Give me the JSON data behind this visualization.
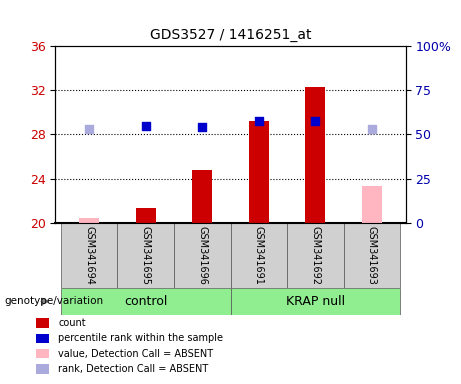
{
  "title": "GDS3527 / 1416251_at",
  "samples": [
    "GSM341694",
    "GSM341695",
    "GSM341696",
    "GSM341691",
    "GSM341692",
    "GSM341693"
  ],
  "groups": [
    "control",
    "control",
    "control",
    "KRAP null",
    "KRAP null",
    "KRAP null"
  ],
  "group_labels": [
    "control",
    "KRAP null"
  ],
  "group_colors": [
    "#90ee90",
    "#90ee90"
  ],
  "bar_bottom": 20,
  "ylim_left": [
    20,
    36
  ],
  "ylim_right": [
    0,
    100
  ],
  "yticks_left": [
    20,
    24,
    28,
    32,
    36
  ],
  "yticks_right": [
    0,
    25,
    50,
    75,
    100
  ],
  "red_bars": [
    null,
    21.3,
    24.8,
    29.2,
    32.3,
    null
  ],
  "pink_bars": [
    20.4,
    null,
    null,
    null,
    null,
    23.3
  ],
  "blue_squares": [
    null,
    28.8,
    28.7,
    29.2,
    29.2,
    null
  ],
  "light_blue_squares": [
    28.5,
    null,
    null,
    null,
    null,
    28.5
  ],
  "left_color": "#cc0000",
  "pink_color": "#ffb6c1",
  "blue_color": "#0000cc",
  "light_blue_color": "#aaaadd",
  "bar_width": 0.35,
  "square_size": 50,
  "legend_items": [
    {
      "label": "count",
      "color": "#cc0000",
      "marker": "s"
    },
    {
      "label": "percentile rank within the sample",
      "color": "#0000cc",
      "marker": "s"
    },
    {
      "label": "value, Detection Call = ABSENT",
      "color": "#ffb6c1",
      "marker": "s"
    },
    {
      "label": "rank, Detection Call = ABSENT",
      "color": "#aaaadd",
      "marker": "s"
    }
  ],
  "xlabel_color": "#cc0000",
  "ylabel_right_color": "#0000aa",
  "genotype_label": "genotype/variation"
}
